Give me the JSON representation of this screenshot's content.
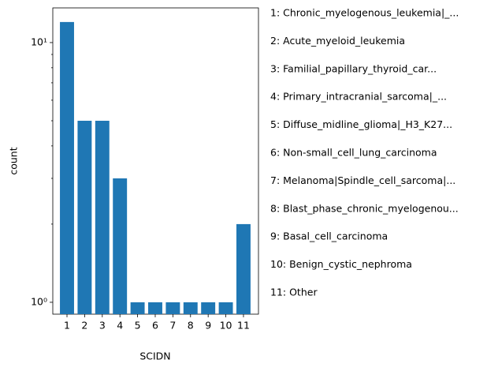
{
  "chart_data": {
    "type": "bar",
    "x_label": "SCIDN",
    "y_label": "count",
    "categories": [
      "1",
      "2",
      "3",
      "4",
      "5",
      "6",
      "7",
      "8",
      "9",
      "10",
      "11"
    ],
    "values": [
      12,
      5,
      5,
      3,
      1,
      1,
      1,
      1,
      1,
      1,
      2
    ],
    "color": "#1f77b4",
    "log_y": true,
    "ylim": [
      0.9,
      13.6
    ],
    "yticks": [
      {
        "value": 1,
        "label": "10⁰"
      },
      {
        "value": 10,
        "label": "10¹"
      }
    ],
    "yminorticks": [
      2,
      3,
      4,
      5,
      6,
      7,
      8,
      9
    ],
    "notes": [
      "1: Chronic_myelogenous_leukemia|_...",
      "2: Acute_myeloid_leukemia",
      "3: Familial_papillary_thyroid_car...",
      "4: Primary_intracranial_sarcoma|_...",
      "5: Diffuse_midline_glioma|_H3_K27...",
      "6: Non-small_cell_lung_carcinoma",
      "7: Melanoma|Spindle_cell_sarcoma|...",
      "8: Blast_phase_chronic_myelogenou...",
      "9: Basal_cell_carcinoma",
      "10: Benign_cystic_nephroma",
      "11: Other"
    ]
  }
}
